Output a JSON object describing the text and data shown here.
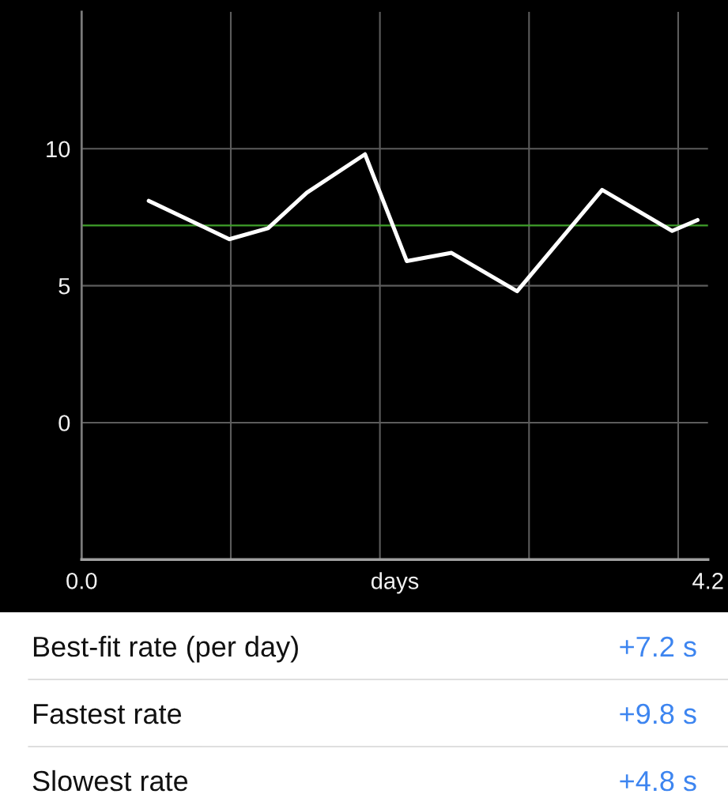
{
  "chart_data": {
    "type": "line",
    "xlabel": "days",
    "x": [
      0.45,
      0.99,
      1.25,
      1.51,
      1.9,
      2.18,
      2.48,
      2.92,
      3.49,
      3.96,
      4.13
    ],
    "series": [
      {
        "color": "#ffffff",
        "values": [
          8.1,
          6.7,
          7.1,
          8.4,
          9.8,
          5.9,
          6.2,
          4.8,
          8.5,
          7.0,
          7.4
        ]
      }
    ],
    "xlim": [
      0,
      4.2
    ],
    "xticks": [
      {
        "value": 0,
        "label": "0.0"
      },
      {
        "value": 1,
        "label": null
      },
      {
        "value": 2,
        "label": null
      },
      {
        "value": 3,
        "label": null
      },
      {
        "value": 4,
        "label": null
      },
      4.2
    ],
    "ylim": [
      -5,
      15
    ],
    "yticks": [
      0,
      5,
      10
    ],
    "grid": true,
    "ref_lines": [
      {
        "axis": "y",
        "value": 7.2,
        "color": "#3f9f2a"
      }
    ],
    "annotations": [
      "Best-fit rate (per day)",
      "+7.2 s",
      "Fastest rate",
      "+9.8 s",
      "Slowest rate",
      "+4.8 s"
    ]
  }
}
